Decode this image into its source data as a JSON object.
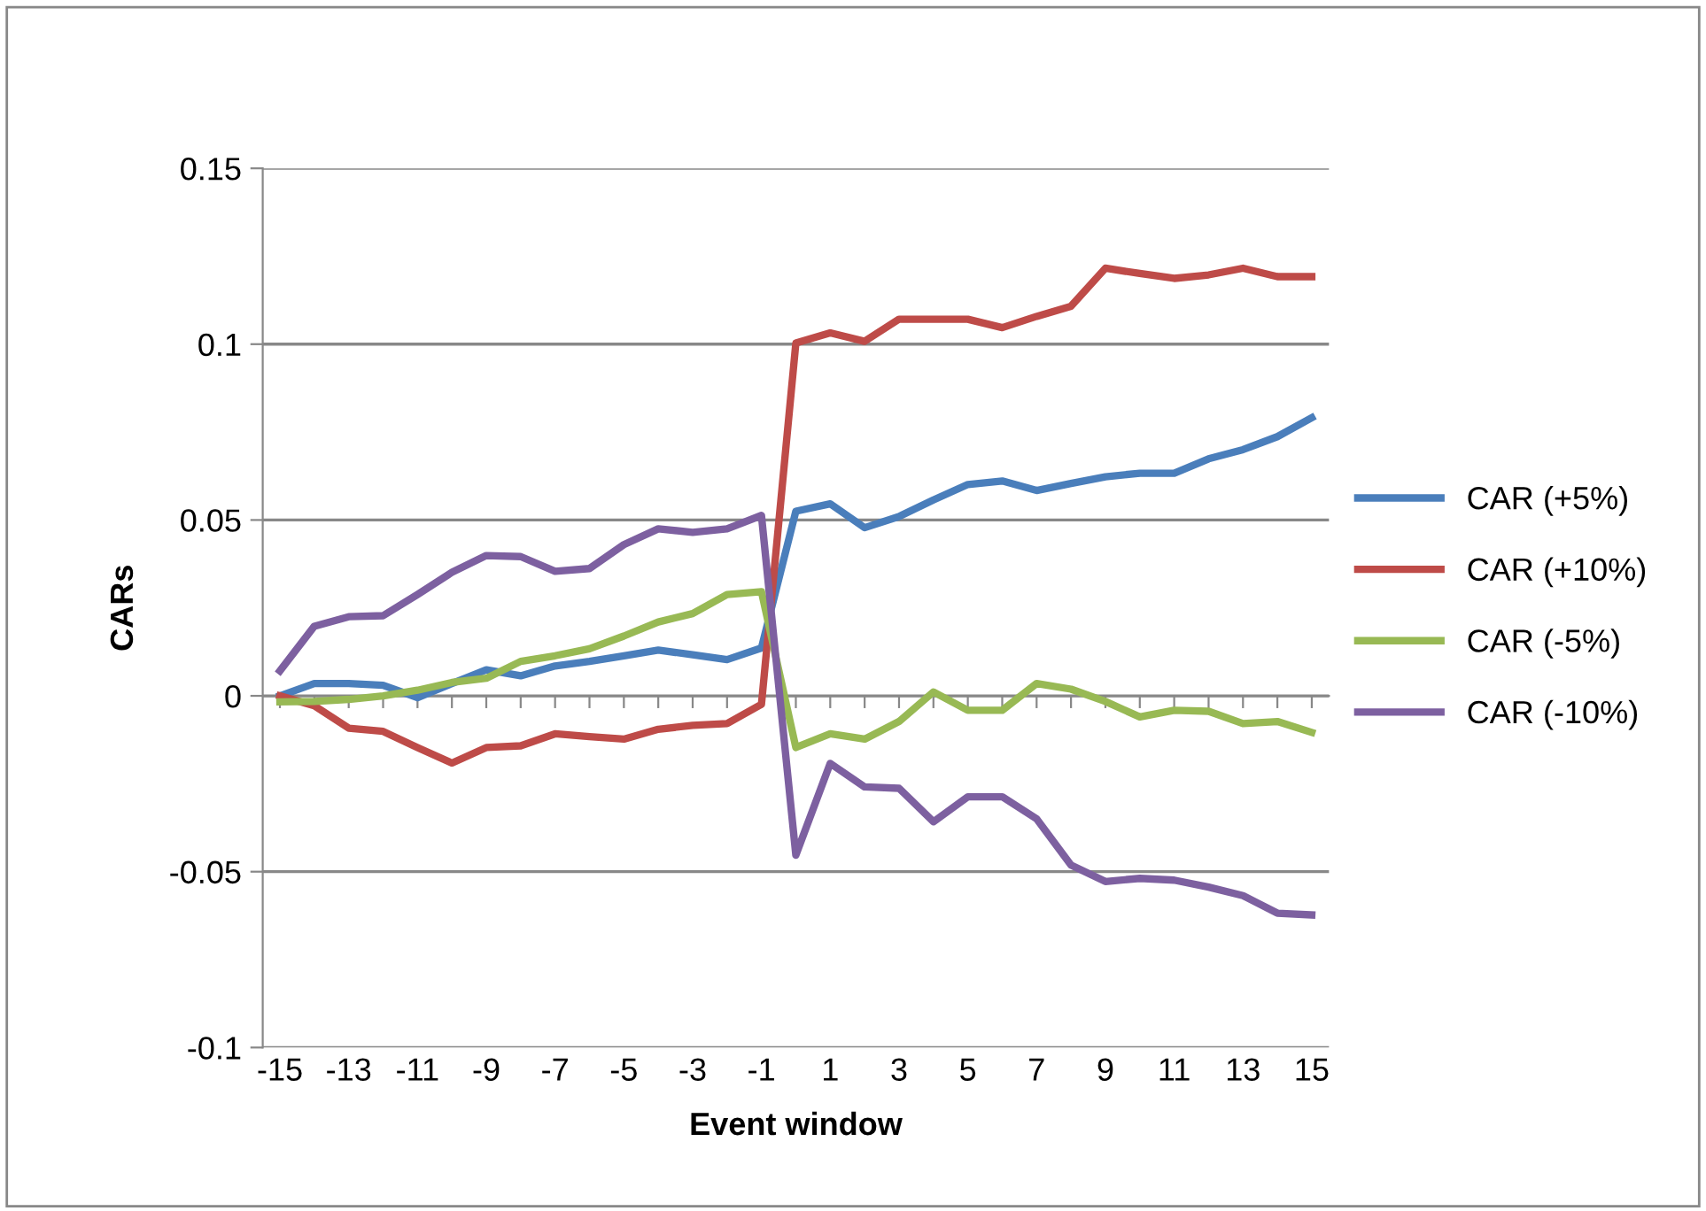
{
  "chart_data": {
    "type": "line",
    "xlabel": "Event window",
    "ylabel": "CARs",
    "categories": [
      "-15",
      null,
      "-13",
      null,
      "-11",
      null,
      "-9",
      null,
      "-7",
      null,
      "-5",
      null,
      "-3",
      null,
      "-1",
      null,
      "1",
      null,
      "3",
      null,
      "5",
      null,
      "7",
      null,
      "9",
      null,
      "11",
      null,
      "13",
      null,
      "15"
    ],
    "series": [
      {
        "name": "CAR (+5%)",
        "color": "#4a7ebb",
        "values": [
          0,
          0.0035,
          0.0035,
          0.003,
          -0.0005,
          0.0035,
          0.0074,
          0.0057,
          0.0085,
          0.0098,
          0.0114,
          0.013,
          0.0117,
          0.0103,
          0.0136,
          0.0525,
          0.0546,
          0.0478,
          0.051,
          0.0557,
          0.0601,
          0.0611,
          0.0584,
          0.0604,
          0.0623,
          0.0633,
          0.0633,
          0.0674,
          0.07,
          0.0737,
          0.0791
        ]
      },
      {
        "name": "CAR (+10%)",
        "color": "#be4b48",
        "values": [
          0,
          -0.0028,
          -0.0092,
          -0.0101,
          -0.0147,
          -0.0191,
          -0.0147,
          -0.0142,
          -0.0108,
          -0.0116,
          -0.0123,
          -0.0095,
          -0.0084,
          -0.0079,
          -0.0024,
          0.1003,
          0.1032,
          0.1008,
          0.1071,
          0.1071,
          0.1071,
          0.1047,
          0.1079,
          0.1108,
          0.1216,
          0.1201,
          0.1187,
          0.1197,
          0.1216,
          0.1192,
          0.1192
        ]
      },
      {
        "name": "CAR (-5%)",
        "color": "#98b954",
        "values": [
          -0.0017,
          -0.0016,
          -0.001,
          0,
          0.0016,
          0.0038,
          0.005,
          0.0098,
          0.0114,
          0.0134,
          0.017,
          0.021,
          0.0234,
          0.0288,
          0.0296,
          -0.0147,
          -0.0108,
          -0.0123,
          -0.0073,
          0.0011,
          -0.0041,
          -0.0041,
          0.0035,
          0.0019,
          -0.0016,
          -0.006,
          -0.0041,
          -0.0044,
          -0.0079,
          -0.0073,
          -0.0104
        ]
      },
      {
        "name": "CAR (-10%)",
        "color": "#7d60a0",
        "values": [
          0.0071,
          0.0198,
          0.0225,
          0.0228,
          0.0288,
          0.0351,
          0.0399,
          0.0396,
          0.0354,
          0.0362,
          0.043,
          0.0475,
          0.0465,
          0.0475,
          0.0513,
          -0.0453,
          -0.0192,
          -0.0259,
          -0.0263,
          -0.0358,
          -0.0287,
          -0.0287,
          -0.035,
          -0.0481,
          -0.0528,
          -0.0519,
          -0.0524,
          -0.0544,
          -0.0568,
          -0.0618,
          -0.0623
        ]
      }
    ],
    "ylim": [
      -0.1,
      0.15
    ],
    "yticks": [
      {
        "value": -0.1,
        "label": "-0.1"
      },
      {
        "value": -0.05,
        "label": "-0.05"
      },
      {
        "value": 0,
        "label": "0"
      },
      {
        "value": 0.05,
        "label": "0.05"
      },
      {
        "value": 0.1,
        "label": "0.1"
      },
      {
        "value": 0.15,
        "label": "0.15"
      }
    ],
    "grid": "y",
    "legend": "right",
    "marker": "none",
    "line_style": "solid"
  }
}
